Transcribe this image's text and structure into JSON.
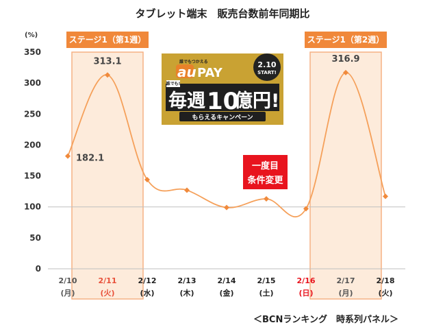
{
  "chart_data": {
    "type": "line",
    "title": "タブレット端末　販売台数前年同期比",
    "yunit": "(%)",
    "ylim": [
      0,
      350
    ],
    "yticks": [
      0,
      50,
      100,
      150,
      200,
      250,
      300,
      350
    ],
    "reference_line": 100,
    "categories": [
      "2/10",
      "2/11",
      "2/12",
      "2/13",
      "2/14",
      "2/15",
      "2/16",
      "2/17",
      "2/18"
    ],
    "days": [
      "(月)",
      "(火)",
      "(水)",
      "(木)",
      "(金)",
      "(土)",
      "(日)",
      "(月)",
      "(火)"
    ],
    "category_colors": [
      "#555555",
      "#e8503a",
      "#222222",
      "#222222",
      "#222222",
      "#222222",
      "#e8141e",
      "#555555",
      "#222222"
    ],
    "values": [
      182.1,
      313.1,
      144,
      127,
      99,
      113,
      97,
      316.9,
      117
    ],
    "data_labels": [
      {
        "index": 0,
        "text": "182.1"
      },
      {
        "index": 1,
        "text": "313.1"
      },
      {
        "index": 7,
        "text": "316.9"
      }
    ],
    "highlight_bands": [
      {
        "index": 1,
        "label": "ステージ1（第1週）"
      },
      {
        "index": 7,
        "label": "ステージ1（第2週）"
      }
    ],
    "annotation": {
      "line1": "一度目",
      "line2": "条件変更"
    },
    "source": "＜BCNランキング　時系列パネル＞",
    "colors": {
      "line": "#f5a05a",
      "marker": "#f08a3c",
      "band_fill": "#fdebdb",
      "band_stroke": "#f5b184",
      "stage_label_bg": "#f0883a",
      "annotation_bg": "#e8141e",
      "grid": "#d0d0d0"
    }
  },
  "banner": {
    "small_text": "誰でもつかえる",
    "brand": "au",
    "pay": "PAY",
    "date": "2.10",
    "start": "START!",
    "tag": "誰でも!",
    "main_left": "毎週",
    "main_num": "10",
    "main_right": "億円!",
    "sub": "もらえるキャンペーン"
  }
}
